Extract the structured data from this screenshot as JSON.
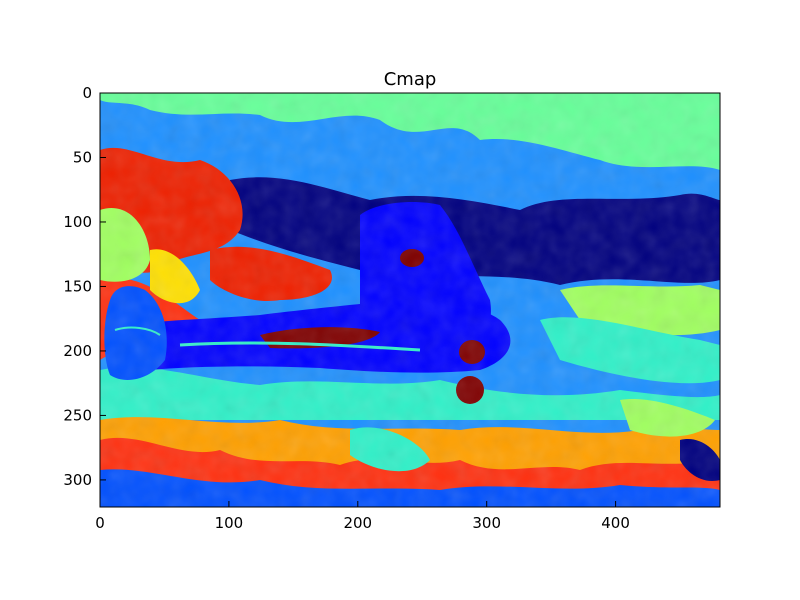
{
  "figure": {
    "title": "Cmap",
    "colormap": "jet",
    "subject": "airplane",
    "x_ticks": [
      "0",
      "100",
      "200",
      "300",
      "400"
    ],
    "y_ticks": [
      "0",
      "50",
      "100",
      "150",
      "200",
      "250",
      "300"
    ],
    "x_range": [
      0,
      481
    ],
    "y_range": [
      0,
      321
    ],
    "palette": {
      "dark_navy": "#00007f",
      "blue": "#0000ff",
      "royal_blue": "#0050ff",
      "sky_blue": "#1e90ff",
      "cyan": "#30f0c8",
      "mint": "#66ff99",
      "light_green": "#a0ff60",
      "yellow": "#ffe000",
      "orange": "#ffa000",
      "red_orange": "#ff3010",
      "red": "#ee2000",
      "maroon": "#7f0000"
    }
  }
}
